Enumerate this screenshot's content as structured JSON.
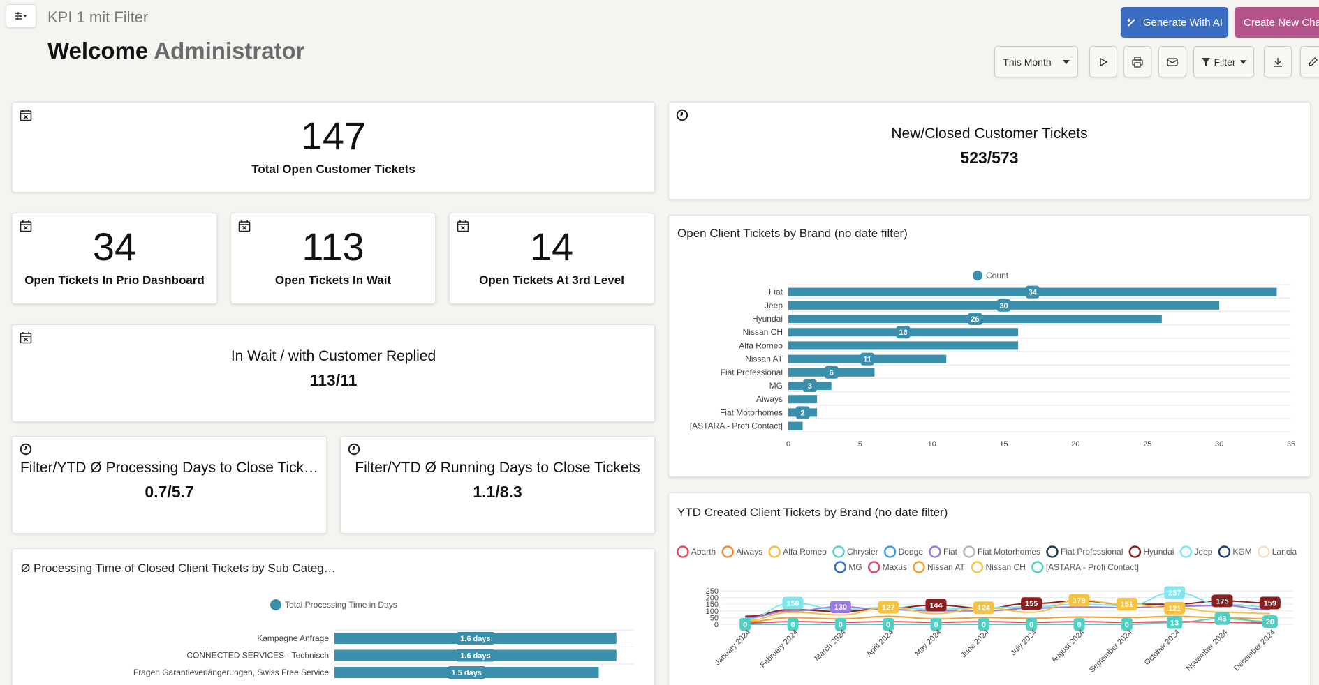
{
  "header": {
    "page_name": "KPI 1 mit Filter",
    "welcome_prefix": "Welcome",
    "welcome_user": "Administrator",
    "generate_ai_label": "Generate With AI",
    "create_chart_label": "Create New Chart",
    "period_select": "This Month",
    "filter_label": "Filter"
  },
  "kpis": {
    "total_open": {
      "value": "147",
      "label": "Total Open Customer Tickets"
    },
    "prio": {
      "value": "34",
      "label": "Open Tickets In Prio Dashboard"
    },
    "wait": {
      "value": "113",
      "label": "Open Tickets In Wait"
    },
    "third": {
      "value": "14",
      "label": "Open Tickets At 3rd Level"
    },
    "wait_replied": {
      "title": "In Wait / with Customer Replied",
      "value": "113/11"
    },
    "processing_days": {
      "title": "Filter/YTD Ø Processing Days to Close Tick…",
      "value": "0.7/5.7"
    },
    "running_days": {
      "title": "Filter/YTD Ø Running Days to Close Tickets",
      "value": "1.1/8.3"
    },
    "new_closed": {
      "title": "New/Closed Customer Tickets",
      "value": "523/573"
    }
  },
  "colors": {
    "bar": "#3a8fad",
    "primary_btn": "#3a6cc2",
    "create_btn": "#b3558a"
  },
  "chart_data": [
    {
      "type": "bar",
      "title": "Open Client Tickets by Brand (no date filter)",
      "legend": "Count",
      "categories": [
        "Fiat",
        "Jeep",
        "Hyundai",
        "Nissan CH",
        "Alfa Romeo",
        "Nissan AT",
        "Fiat Professional",
        "MG",
        "Aiways",
        "Fiat Motorhomes",
        "[ASTARA - Profi Contact]"
      ],
      "values": [
        34,
        30,
        26,
        16,
        16,
        11,
        6,
        3,
        2,
        2,
        1
      ],
      "labels": [
        "34",
        "30",
        "26",
        "16",
        "",
        "11",
        "6",
        "3",
        "",
        "2",
        ""
      ],
      "xlim": [
        0,
        35
      ],
      "xticks": [
        "0",
        "5",
        "10",
        "15",
        "20",
        "25",
        "30",
        "35"
      ]
    },
    {
      "type": "bar",
      "title": "Ø Processing Time of Closed Client Tickets by Sub Categ…",
      "legend": "Total Processing Time in Days",
      "categories": [
        "Kampagne Anfrage",
        "CONNECTED SERVICES - Technisch",
        "Fragen Garantieverlängerungen, Swiss Free Service"
      ],
      "values": [
        1.6,
        1.6,
        1.5
      ],
      "labels": [
        "1.6 days",
        "1.6 days",
        "1.5 days"
      ]
    },
    {
      "type": "line",
      "title": "YTD Created Client Tickets by Brand (no date filter)",
      "legend_items": [
        {
          "name": "Abarth",
          "color": "#e84a5f"
        },
        {
          "name": "Aiways",
          "color": "#f08c3a"
        },
        {
          "name": "Alfa Romeo",
          "color": "#f5c242"
        },
        {
          "name": "Chrysler",
          "color": "#5ad1c8"
        },
        {
          "name": "Dodge",
          "color": "#3aa0e0"
        },
        {
          "name": "Fiat",
          "color": "#9a7be0"
        },
        {
          "name": "Fiat Motorhomes",
          "color": "#b8b8b8"
        },
        {
          "name": "Fiat Professional",
          "color": "#1f3a5a"
        },
        {
          "name": "Hyundai",
          "color": "#8b1e1e"
        },
        {
          "name": "Jeep",
          "color": "#7fe6f0"
        },
        {
          "name": "KGM",
          "color": "#1e3f7a"
        },
        {
          "name": "Lancia",
          "color": "#f3e0c8"
        },
        {
          "name": "MG",
          "color": "#2a6fd6"
        },
        {
          "name": "Maxus",
          "color": "#e0466a"
        },
        {
          "name": "Nissan AT",
          "color": "#f0a030"
        },
        {
          "name": "Nissan CH",
          "color": "#f5c842"
        },
        {
          "name": "[ASTARA - Profi Contact]",
          "color": "#4fd0c4"
        }
      ],
      "x": [
        "January 2024",
        "February 2024",
        "March 2024",
        "April 2024",
        "May 2024",
        "June 2024",
        "July 2024",
        "August 2024",
        "September 2024",
        "October 2024",
        "November 2024",
        "December 2024"
      ],
      "yticks": [
        "0",
        "50",
        "100",
        "150",
        "200",
        "250"
      ],
      "ylim": [
        0,
        250
      ],
      "series": [
        {
          "name": "Hyundai",
          "values": [
            60,
            110,
            95,
            120,
            144,
            120,
            155,
            175,
            150,
            150,
            175,
            159
          ]
        },
        {
          "name": "Jeep",
          "values": [
            40,
            158,
            110,
            127,
            110,
            124,
            130,
            150,
            140,
            237,
            150,
            130
          ]
        },
        {
          "name": "Fiat",
          "values": [
            50,
            100,
            130,
            110,
            100,
            100,
            120,
            130,
            125,
            135,
            140,
            110
          ]
        },
        {
          "name": "Alfa Romeo",
          "values": [
            30,
            90,
            70,
            127,
            80,
            124,
            90,
            179,
            151,
            121,
            90,
            80
          ]
        },
        {
          "name": "Nissan AT",
          "values": [
            20,
            50,
            40,
            60,
            40,
            50,
            45,
            55,
            50,
            60,
            50,
            40
          ]
        },
        {
          "name": "[ASTARA - Profi Contact]",
          "values": [
            0,
            0,
            0,
            0,
            0,
            0,
            0,
            0,
            0,
            13,
            43,
            20
          ]
        },
        {
          "name": "Abarth",
          "values": [
            10,
            20,
            15,
            20,
            15,
            20,
            15,
            20,
            15,
            20,
            15,
            10
          ]
        }
      ],
      "point_labels": [
        {
          "series": "[ASTARA - Profi Contact]",
          "i": 0,
          "text": "0"
        },
        {
          "series": "Jeep",
          "i": 1,
          "text": "158"
        },
        {
          "series": "[ASTARA - Profi Contact]",
          "i": 1,
          "text": "0"
        },
        {
          "series": "Fiat",
          "i": 2,
          "text": "130"
        },
        {
          "series": "[ASTARA - Profi Contact]",
          "i": 2,
          "text": "0"
        },
        {
          "series": "Alfa Romeo",
          "i": 3,
          "text": "127"
        },
        {
          "series": "[ASTARA - Profi Contact]",
          "i": 3,
          "text": "0"
        },
        {
          "series": "Hyundai",
          "i": 4,
          "text": "144"
        },
        {
          "series": "[ASTARA - Profi Contact]",
          "i": 4,
          "text": "0"
        },
        {
          "series": "Alfa Romeo",
          "i": 5,
          "text": "124"
        },
        {
          "series": "[ASTARA - Profi Contact]",
          "i": 5,
          "text": "0"
        },
        {
          "series": "Hyundai",
          "i": 6,
          "text": "155"
        },
        {
          "series": "[ASTARA - Profi Contact]",
          "i": 6,
          "text": "0"
        },
        {
          "series": "Alfa Romeo",
          "i": 7,
          "text": "179"
        },
        {
          "series": "[ASTARA - Profi Contact]",
          "i": 7,
          "text": "0"
        },
        {
          "series": "Alfa Romeo",
          "i": 8,
          "text": "151"
        },
        {
          "series": "[ASTARA - Profi Contact]",
          "i": 8,
          "text": "0"
        },
        {
          "series": "Jeep",
          "i": 9,
          "text": "237"
        },
        {
          "series": "Alfa Romeo",
          "i": 9,
          "text": "121"
        },
        {
          "series": "[ASTARA - Profi Contact]",
          "i": 9,
          "text": "13"
        },
        {
          "series": "Hyundai",
          "i": 10,
          "text": "175"
        },
        {
          "series": "[ASTARA - Profi Contact]",
          "i": 10,
          "text": "43"
        },
        {
          "series": "Hyundai",
          "i": 11,
          "text": "159"
        },
        {
          "series": "[ASTARA - Profi Contact]",
          "i": 11,
          "text": "20"
        }
      ]
    }
  ]
}
